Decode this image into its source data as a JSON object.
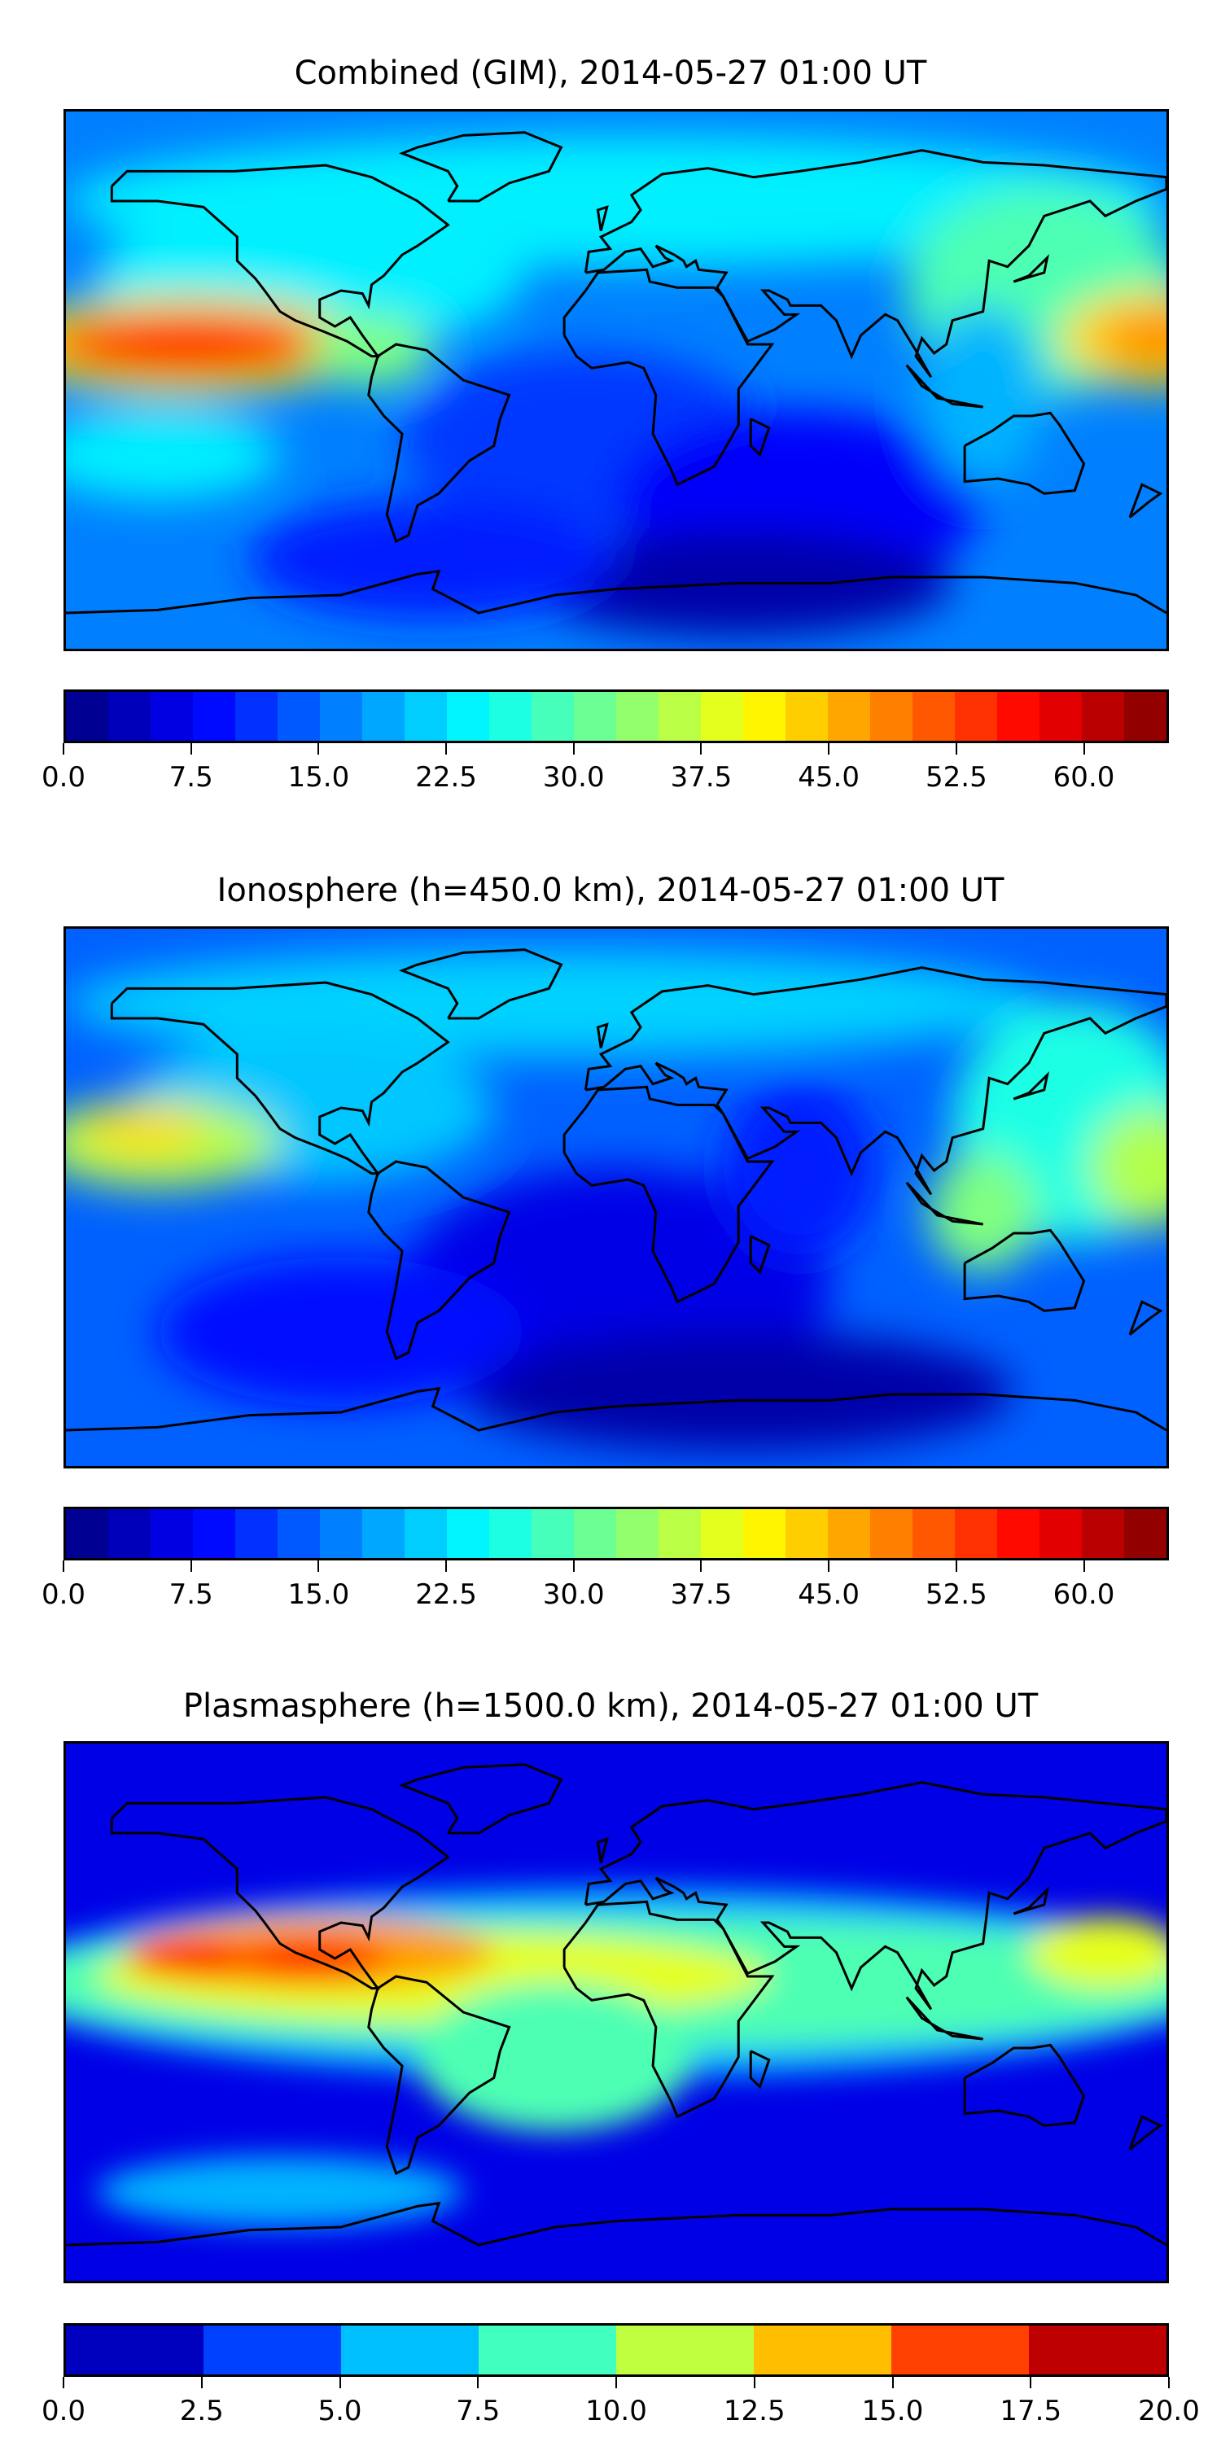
{
  "chart_data": [
    {
      "type": "heatmap",
      "title": "Combined (GIM), 2014-05-27 01:00 UT",
      "colormap": "jet",
      "colorbar": {
        "min": 0.0,
        "max": 65.0,
        "step": 2.5,
        "ticks": [
          "0.0",
          "7.5",
          "15.0",
          "22.5",
          "30.0",
          "37.5",
          "45.0",
          "52.5",
          "60.0"
        ],
        "tick_values": [
          0,
          7.5,
          15,
          22.5,
          30,
          37.5,
          45,
          52.5,
          60
        ]
      }
    },
    {
      "type": "heatmap",
      "title": "Ionosphere  (h=450.0 km), 2014-05-27 01:00 UT",
      "colormap": "jet",
      "colorbar": {
        "min": 0.0,
        "max": 65.0,
        "step": 2.5,
        "ticks": [
          "0.0",
          "7.5",
          "15.0",
          "22.5",
          "30.0",
          "37.5",
          "45.0",
          "52.5",
          "60.0"
        ],
        "tick_values": [
          0,
          7.5,
          15,
          22.5,
          30,
          37.5,
          45,
          52.5,
          60
        ]
      }
    },
    {
      "type": "heatmap",
      "title": "Plasmasphere (h=1500.0 km), 2014-05-27 01:00 UT",
      "colormap": "jet",
      "colorbar": {
        "min": 0.0,
        "max": 20.0,
        "step": 2.5,
        "ticks": [
          "0.0",
          "2.5",
          "5.0",
          "7.5",
          "10.0",
          "12.5",
          "15.0",
          "17.5",
          "20.0"
        ],
        "tick_values": [
          0,
          2.5,
          5,
          7.5,
          10,
          12.5,
          15,
          17.5,
          20
        ]
      }
    }
  ]
}
